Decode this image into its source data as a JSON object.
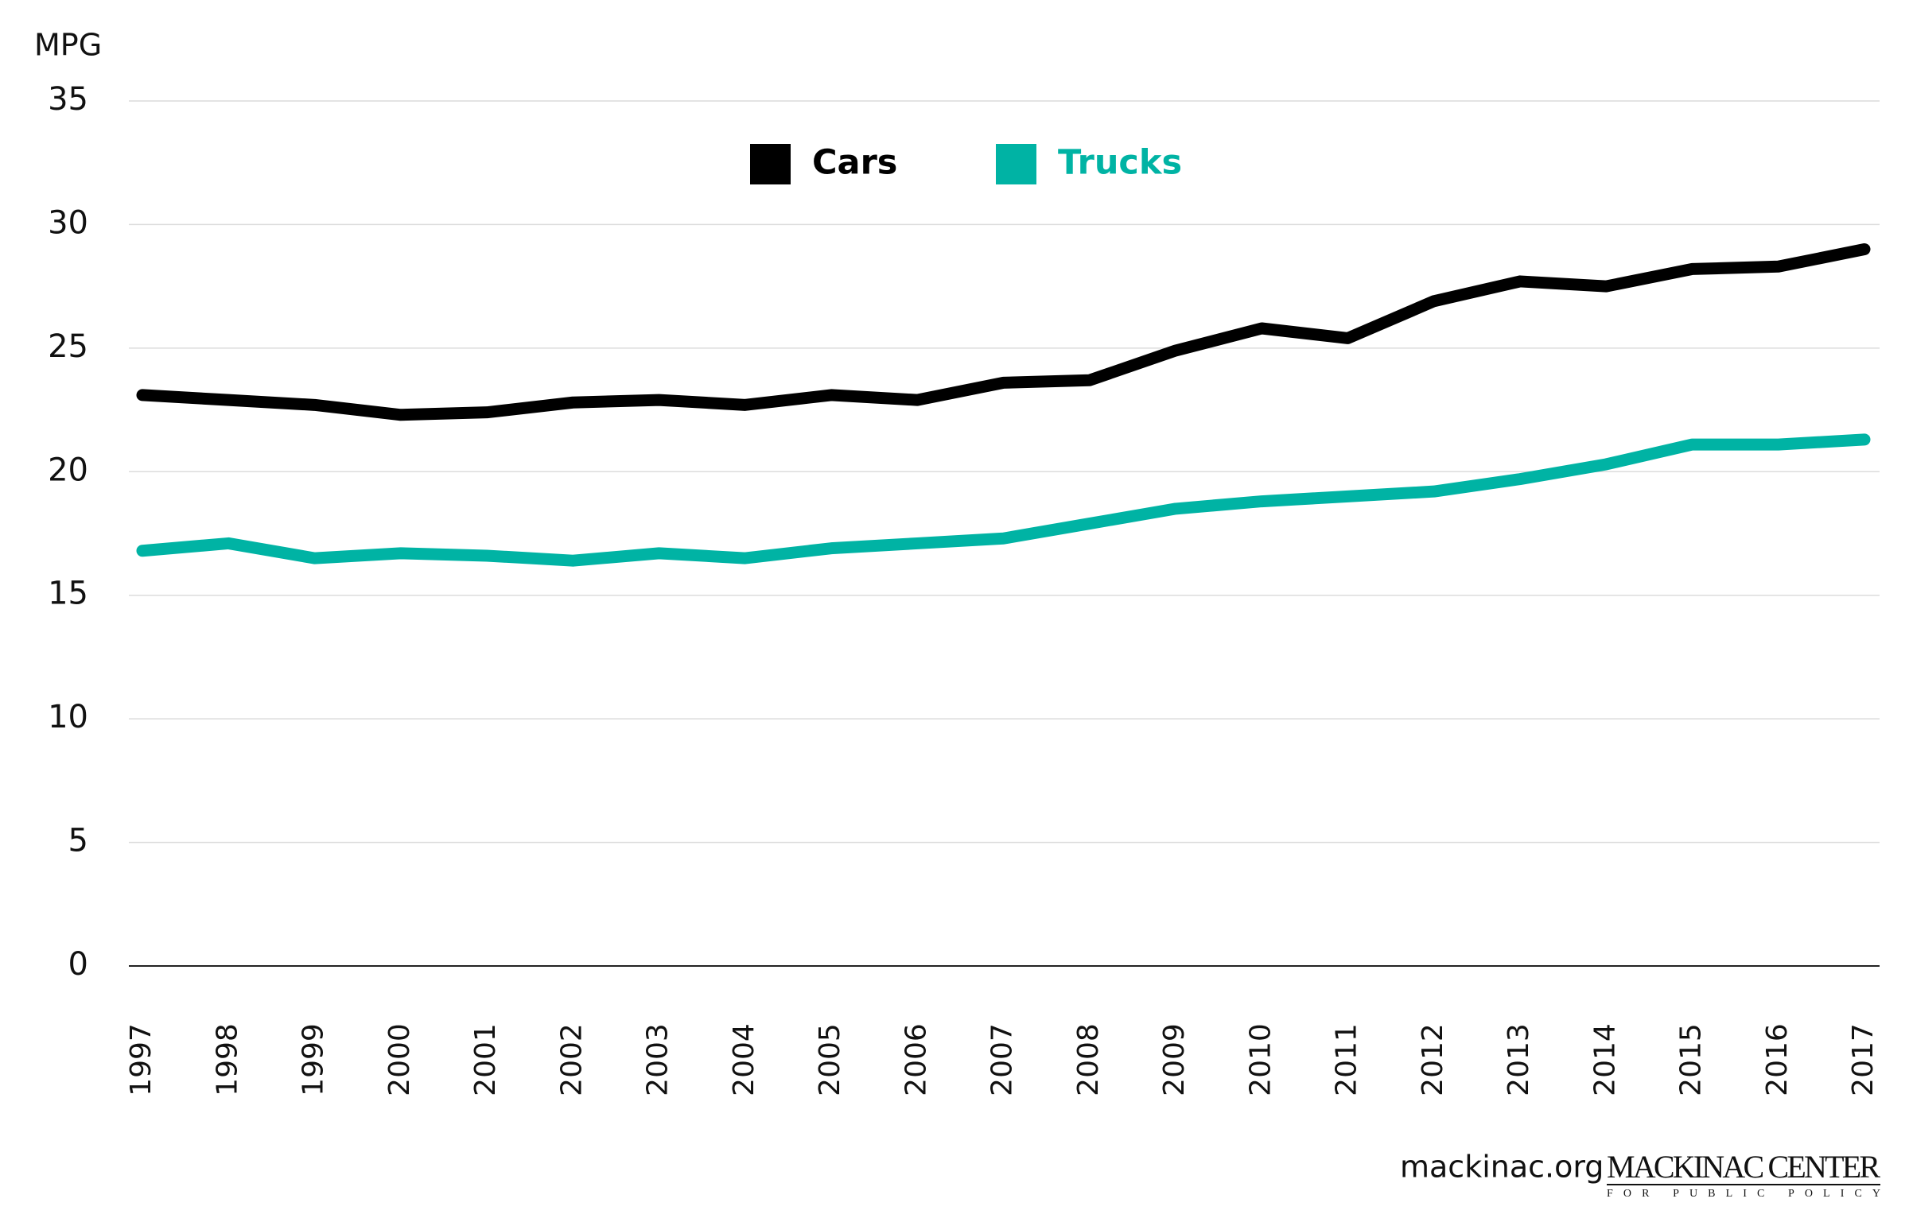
{
  "chart_data": {
    "type": "line",
    "y_label": "MPG",
    "x": [
      "1997",
      "1998",
      "1999",
      "2000",
      "2001",
      "2002",
      "2003",
      "2004",
      "2005",
      "2006",
      "2007",
      "2008",
      "2009",
      "2010",
      "2011",
      "2012",
      "2013",
      "2014",
      "2015",
      "2016",
      "2017"
    ],
    "series": [
      {
        "name": "Cars",
        "color": "#000000",
        "values": [
          23.1,
          22.9,
          22.7,
          22.3,
          22.4,
          22.8,
          22.9,
          22.7,
          23.1,
          22.9,
          23.6,
          23.7,
          24.9,
          25.8,
          25.4,
          26.9,
          27.7,
          27.5,
          28.2,
          28.3,
          29.0
        ]
      },
      {
        "name": "Trucks",
        "color": "#00b3a4",
        "values": [
          16.8,
          17.1,
          16.5,
          16.7,
          16.6,
          16.4,
          16.7,
          16.5,
          16.9,
          17.1,
          17.3,
          17.9,
          18.5,
          18.8,
          19.0,
          19.2,
          19.7,
          20.3,
          21.1,
          21.1,
          21.3
        ]
      }
    ],
    "ylim": [
      0,
      35
    ],
    "yticks": [
      0,
      5,
      10,
      15,
      20,
      25,
      30,
      35
    ],
    "grid": true,
    "legend": "top"
  },
  "footer": {
    "site": "mackinac.org",
    "logo_name": "MACKINAC CENTER",
    "logo_tagline": "FOR PUBLIC POLICY"
  }
}
